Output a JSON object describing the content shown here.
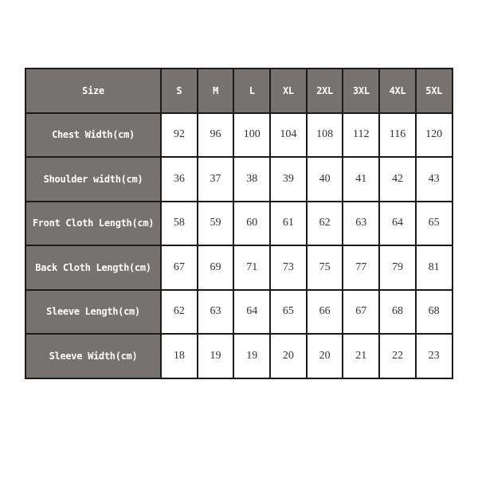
{
  "table": {
    "header": [
      "Size",
      "S",
      "M",
      "L",
      "XL",
      "2XL",
      "3XL",
      "4XL",
      "5XL"
    ],
    "rows": [
      {
        "label": "Chest Width(cm)",
        "values": [
          "92",
          "96",
          "100",
          "104",
          "108",
          "112",
          "116",
          "120"
        ]
      },
      {
        "label": "Shoulder width(cm)",
        "values": [
          "36",
          "37",
          "38",
          "39",
          "40",
          "41",
          "42",
          "43"
        ]
      },
      {
        "label": "Front Cloth Length(cm)",
        "values": [
          "58",
          "59",
          "60",
          "61",
          "62",
          "63",
          "64",
          "65"
        ]
      },
      {
        "label": "Back Cloth Length(cm)",
        "values": [
          "67",
          "69",
          "71",
          "73",
          "75",
          "77",
          "79",
          "81"
        ]
      },
      {
        "label": "Sleeve Length(cm)",
        "values": [
          "62",
          "63",
          "64",
          "65",
          "66",
          "67",
          "68",
          "68"
        ]
      },
      {
        "label": "Sleeve Width(cm)",
        "values": [
          "18",
          "19",
          "19",
          "20",
          "20",
          "21",
          "22",
          "23"
        ]
      }
    ],
    "colors": {
      "header_bg": "#767270",
      "header_text": "#ffffff",
      "cell_bg": "#ffffff",
      "border": "#1a1a1a"
    }
  }
}
